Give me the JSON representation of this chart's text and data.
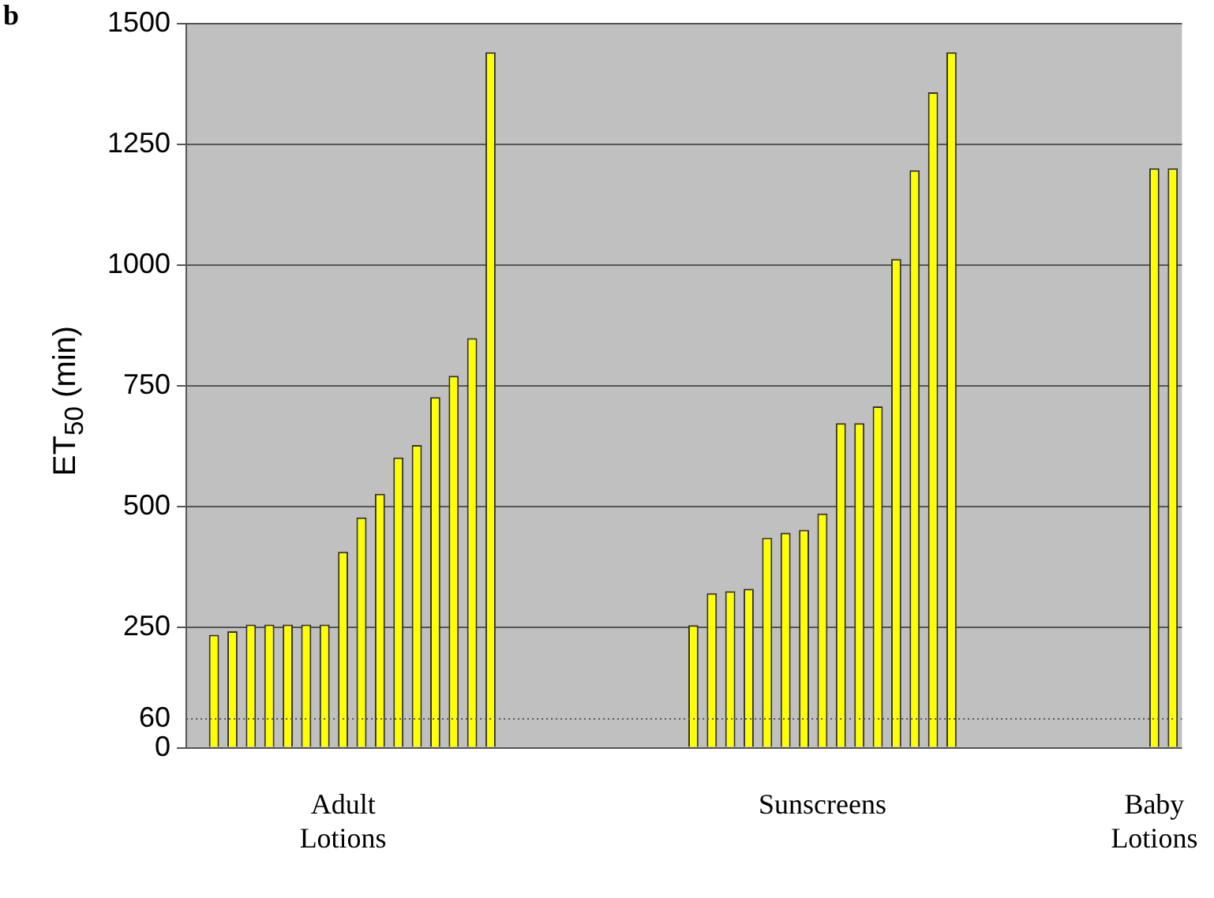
{
  "chart_data": {
    "type": "bar",
    "ylabel": "ET$_{50}$ (min)",
    "categories": [
      null,
      null,
      null,
      null,
      null,
      null,
      null,
      null,
      "Adult Lotions",
      null,
      null,
      null,
      null,
      null,
      null,
      null,
      null,
      null,
      null,
      null,
      null,
      null,
      null,
      null,
      null,
      null,
      null,
      null,
      null,
      null,
      null,
      null,
      null,
      null,
      "Sunscreens",
      null,
      null,
      null,
      null,
      null,
      null,
      null,
      null,
      null,
      null,
      null,
      null,
      null,
      null,
      null,
      null,
      null,
      "Baby Lotions",
      null
    ],
    "series": [
      {
        "color": "#ffff00",
        "values": [
          null,
          234,
          241,
          255,
          255,
          255,
          255,
          255,
          406,
          477,
          526,
          601,
          627,
          726,
          770,
          848,
          1440,
          null,
          null,
          null,
          null,
          null,
          null,
          null,
          null,
          null,
          null,
          254,
          320,
          324,
          329,
          435,
          445,
          451,
          485,
          672,
          672,
          707,
          1012,
          1196,
          1357,
          1440,
          null,
          null,
          null,
          null,
          null,
          null,
          null,
          null,
          null,
          null,
          1200,
          1200
        ]
      }
    ],
    "ylim": [
      0,
      1500
    ],
    "yticks": [
      0,
      60,
      250,
      500,
      750,
      1000,
      1250,
      1500
    ],
    "grid": "y",
    "ref_lines": [
      {
        "axis": "y",
        "value": 60,
        "line_style": "dotted",
        "color": "#555555"
      }
    ],
    "annotations": [
      "b"
    ]
  }
}
